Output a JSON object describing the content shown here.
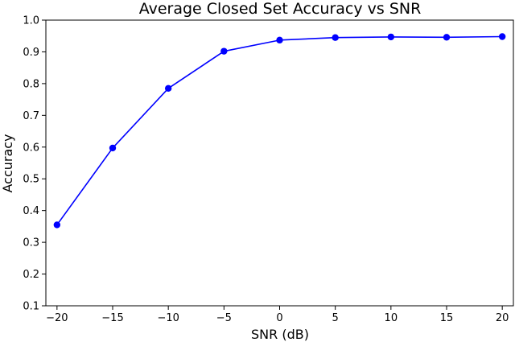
{
  "chart_data": {
    "type": "line",
    "title": "Average Closed Set Accuracy vs SNR",
    "xlabel": "SNR (dB)",
    "ylabel": "Accuracy",
    "x": [
      -20,
      -15,
      -10,
      -5,
      0,
      5,
      10,
      15,
      20
    ],
    "series": [
      {
        "values": [
          0.355,
          0.597,
          0.785,
          0.902,
          0.937,
          0.945,
          0.947,
          0.946,
          0.948
        ]
      }
    ],
    "xlim": [
      -21,
      21
    ],
    "ylim": [
      0.1,
      1.0
    ],
    "xticks": [
      "−20",
      "−15",
      "−10",
      "−5",
      "0",
      "5",
      "10",
      "15",
      "20"
    ],
    "yticks": [
      "0.1",
      "0.2",
      "0.3",
      "0.4",
      "0.5",
      "0.6",
      "0.7",
      "0.8",
      "0.9",
      "1.0"
    ],
    "grid": false,
    "legend": "none",
    "line_color": "#0000ff"
  }
}
